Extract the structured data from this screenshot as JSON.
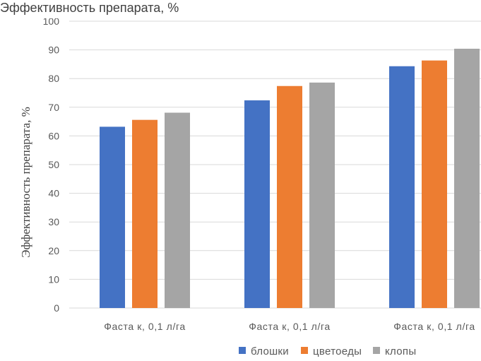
{
  "chart_data": {
    "type": "bar",
    "title": "Эффективность препарата, %",
    "ylabel": "Эффективность препарата, %",
    "xlabel": "",
    "categories": [
      "Фаста к, 0,1 л/га",
      "Фаста к, 0,1 л/га",
      "Фаста к, 0,1 л/га"
    ],
    "series": [
      {
        "name": "блошки",
        "values": [
          63.2,
          72.4,
          84.3
        ],
        "color": "#4472c4"
      },
      {
        "name": "цветоеды",
        "values": [
          65.6,
          77.4,
          86.3
        ],
        "color": "#ed7d31"
      },
      {
        "name": "клопы",
        "values": [
          68.1,
          78.6,
          90.4
        ],
        "color": "#a5a5a5"
      }
    ],
    "ylim": [
      0,
      100
    ],
    "yticks": [
      0,
      10,
      20,
      30,
      40,
      50,
      60,
      70,
      80,
      90,
      100
    ],
    "grid": true,
    "legend_position": "bottom"
  }
}
